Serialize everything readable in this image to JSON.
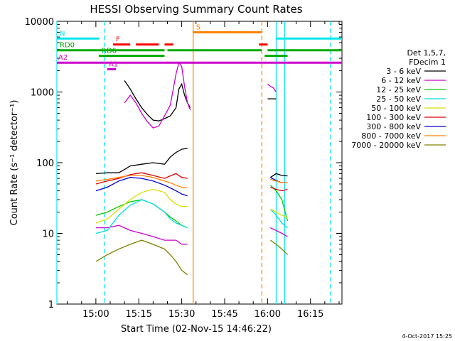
{
  "chart_data": {
    "type": "line",
    "title": "HESSI Observing Summary Count Rates",
    "xlabel": "Start Time (02-Nov-15 14:46:22)",
    "ylabel": "Count Rate (s⁻¹ detector⁻¹)",
    "yscale": "log",
    "ylim": [
      1,
      10000
    ],
    "xlim": [
      "14:46:22",
      "16:26:00"
    ],
    "x_tick_labels": [
      "15:00",
      "15:15",
      "15:30",
      "15:45",
      "16:00",
      "16:15"
    ],
    "y_tick_labels": [
      "1",
      "10",
      "100",
      "1000",
      "10000"
    ],
    "legend_header": [
      "Det 1,5,7,",
      "FDecim 1"
    ],
    "legend_position": "right",
    "series": [
      {
        "name": "3 - 6 keV",
        "color": "#000000",
        "segments": [
          {
            "x": [
              "15:00",
              "15:04",
              "15:08",
              "15:10",
              "15:12",
              "15:16",
              "15:20",
              "15:24",
              "15:26",
              "15:28",
              "15:30",
              "15:32"
            ],
            "y": [
              70,
              72,
              72,
              80,
              90,
              95,
              100,
              95,
              120,
              140,
              155,
              160
            ]
          },
          {
            "x": [
              "16:01",
              "16:03",
              "16:05",
              "16:07"
            ],
            "y": [
              62,
              70,
              66,
              65
            ]
          }
        ]
      },
      {
        "name": "6 - 12 keV",
        "color": "#cc00cc",
        "segments": [
          {
            "x": [
              "15:00",
              "15:04",
              "15:08",
              "15:10",
              "15:12",
              "15:16",
              "15:20",
              "15:24",
              "15:26",
              "15:28",
              "15:30",
              "15:32"
            ],
            "y": [
              12,
              12,
              13,
              12,
              11,
              10,
              9,
              8,
              8,
              8,
              7,
              7
            ]
          },
          {
            "x": [
              "16:01",
              "16:03",
              "16:05",
              "16:07"
            ],
            "y": [
              12,
              11,
              10,
              9
            ]
          }
        ]
      },
      {
        "name": "12 - 25 keV",
        "color": "#00cc00",
        "segments": [
          {
            "x": [
              "15:00",
              "15:04",
              "15:08",
              "15:12",
              "15:16",
              "15:20",
              "15:24",
              "15:26",
              "15:28",
              "15:30",
              "15:32"
            ],
            "y": [
              18,
              20,
              24,
              28,
              30,
              26,
              20,
              17,
              15,
              13,
              12
            ]
          },
          {
            "x": [
              "16:01",
              "16:03",
              "16:05",
              "16:07"
            ],
            "y": [
              48,
              40,
              30,
              15
            ]
          }
        ]
      },
      {
        "name": "25 - 50 keV",
        "color": "#00dddd",
        "segments": [
          {
            "x": [
              "15:00",
              "15:04",
              "15:08",
              "15:12",
              "15:16",
              "15:20",
              "15:24",
              "15:26",
              "15:28",
              "15:30",
              "15:32"
            ],
            "y": [
              10,
              11,
              18,
              25,
              30,
              26,
              20,
              16,
              14,
              13,
              12
            ]
          },
          {
            "x": [
              "16:01",
              "16:03",
              "16:05",
              "16:07"
            ],
            "y": [
              22,
              18,
              14,
              12
            ]
          }
        ]
      },
      {
        "name": "50 - 100 keV",
        "color": "#dddd00",
        "segments": [
          {
            "x": [
              "15:00",
              "15:04",
              "15:08",
              "15:12",
              "15:16",
              "15:20",
              "15:24",
              "15:26",
              "15:28",
              "15:30",
              "15:32"
            ],
            "y": [
              14,
              16,
              22,
              30,
              38,
              42,
              38,
              30,
              26,
              24,
              24
            ]
          },
          {
            "x": [
              "16:01",
              "16:03",
              "16:05",
              "16:07"
            ],
            "y": [
              22,
              20,
              18,
              17
            ]
          }
        ]
      },
      {
        "name": "100 - 300 keV",
        "color": "#dd0000",
        "segments": [
          {
            "x": [
              "15:00",
              "15:04",
              "15:08",
              "15:12",
              "15:16",
              "15:20",
              "15:24",
              "15:26",
              "15:28",
              "15:30",
              "15:32"
            ],
            "y": [
              50,
              55,
              60,
              68,
              72,
              66,
              60,
              65,
              70,
              62,
              60
            ]
          },
          {
            "x": [
              "16:01",
              "16:03",
              "16:05",
              "16:07"
            ],
            "y": [
              45,
              42,
              40,
              42
            ]
          }
        ]
      },
      {
        "name": "300 - 800 keV",
        "color": "#0000cc",
        "segments": [
          {
            "x": [
              "15:00",
              "15:04",
              "15:08",
              "15:12",
              "15:16",
              "15:20",
              "15:24",
              "15:26",
              "15:28",
              "15:30",
              "15:32"
            ],
            "y": [
              40,
              45,
              55,
              62,
              60,
              55,
              48,
              44,
              40,
              36,
              34
            ]
          },
          {
            "x": [
              "16:01",
              "16:03",
              "16:05",
              "16:07"
            ],
            "y": [
              62,
              56,
              52,
              52
            ]
          }
        ]
      },
      {
        "name": "800 - 7000 keV",
        "color": "#ff7f00",
        "segments": [
          {
            "x": [
              "15:00",
              "15:04",
              "15:08",
              "15:12",
              "15:16",
              "15:20",
              "15:24",
              "15:26",
              "15:28",
              "15:30",
              "15:32"
            ],
            "y": [
              55,
              58,
              62,
              66,
              66,
              62,
              55,
              52,
              48,
              45,
              44
            ]
          },
          {
            "x": [
              "16:01",
              "16:03",
              "16:05",
              "16:07"
            ],
            "y": [
              58,
              55,
              52,
              52
            ]
          }
        ]
      },
      {
        "name": "7000 - 20000 keV",
        "color": "#808000",
        "segments": [
          {
            "x": [
              "15:00",
              "15:04",
              "15:08",
              "15:12",
              "15:16",
              "15:20",
              "15:24",
              "15:26",
              "15:28",
              "15:30",
              "15:32"
            ],
            "y": [
              4,
              5,
              6,
              7,
              8,
              7,
              6,
              5,
              4,
              3,
              2.6
            ]
          },
          {
            "x": [
              "16:01",
              "16:03",
              "16:05",
              "16:07"
            ],
            "y": [
              8,
              7,
              6,
              5
            ]
          }
        ]
      }
    ],
    "flare_curves": [
      {
        "series": "3 - 6 keV",
        "color": "#000000",
        "x": [
          "15:10",
          "15:12",
          "15:14",
          "15:16",
          "15:18",
          "15:20",
          "15:22",
          "15:24",
          "15:26",
          "15:28",
          "15:29",
          "15:30",
          "15:31",
          "15:32",
          "15:33"
        ],
        "y": [
          1450,
          1100,
          800,
          600,
          480,
          400,
          390,
          420,
          460,
          600,
          1100,
          1300,
          900,
          700,
          600
        ]
      },
      {
        "series": "6 - 12 keV",
        "color": "#cc00cc",
        "x": [
          "15:10",
          "15:12",
          "15:14",
          "15:16",
          "15:18",
          "15:20",
          "15:22",
          "15:24",
          "15:26",
          "15:28",
          "15:29",
          "15:30",
          "15:31",
          "15:32",
          "15:33"
        ],
        "y": [
          700,
          900,
          700,
          500,
          380,
          310,
          330,
          460,
          650,
          1800,
          2600,
          2300,
          1200,
          700,
          560
        ]
      }
    ],
    "flare_curves_later": [
      {
        "series": "3 - 6 keV",
        "color": "#000000",
        "x": [
          "16:00",
          "16:01",
          "16:02",
          "16:03"
        ],
        "y": [
          800,
          800,
          800,
          800
        ]
      },
      {
        "series": "6 - 12 keV",
        "color": "#cc00cc",
        "x": [
          "16:00",
          "16:01",
          "16:02",
          "16:03"
        ],
        "y": [
          1300,
          1200,
          1150,
          1000
        ]
      }
    ],
    "flag_bars": [
      {
        "label": "N",
        "color": "#00e5ee",
        "y": 5700,
        "spans": [
          [
            "14:46:22",
            "15:01"
          ],
          [
            "16:03",
            "16:26"
          ]
        ]
      },
      {
        "label": "F",
        "color": "#ff0000",
        "y": 4700,
        "spans": [
          [
            "15:06",
            "15:12"
          ],
          [
            "15:14",
            "15:22"
          ],
          [
            "15:24",
            "15:27"
          ],
          [
            "15:57",
            "16:00"
          ]
        ]
      },
      {
        "label": "RD0",
        "color": "#00aa00",
        "y": 3900,
        "spans": [
          [
            "14:46:22",
            "15:24"
          ],
          [
            "15:25",
            "15:58"
          ],
          [
            "16:00",
            "16:26"
          ]
        ]
      },
      {
        "label": "RD6",
        "color": "#00aa00",
        "y": 3250,
        "spans": [
          [
            "15:01",
            "15:24"
          ],
          [
            "15:59",
            "16:07"
          ]
        ]
      },
      {
        "label": "A2",
        "color": "#cc00cc",
        "y": 2600,
        "spans": [
          [
            "14:46:22",
            "16:26"
          ]
        ]
      },
      {
        "label": "A1",
        "color": "#cc00cc",
        "y": 2100,
        "spans": [
          [
            "15:04",
            "15:07"
          ]
        ]
      },
      {
        "label": "S",
        "color": "#ff7f00",
        "y": 7000,
        "spans": [
          [
            "15:34",
            "15:58"
          ]
        ]
      }
    ],
    "vertical_markers": [
      {
        "x": "14:46:22",
        "color": "#00e5ee",
        "style": "solid"
      },
      {
        "x": "15:03",
        "color": "#00e5ee",
        "style": "dashed"
      },
      {
        "x": "15:34",
        "color": "#ff7f00",
        "style": "solid"
      },
      {
        "x": "15:58",
        "color": "#ff7f00",
        "style": "dashed"
      },
      {
        "x": "16:03",
        "color": "#00e5ee",
        "style": "solid"
      },
      {
        "x": "16:06",
        "color": "#00e5ee",
        "style": "solid"
      },
      {
        "x": "16:22",
        "color": "#00e5ee",
        "style": "dashed"
      }
    ]
  },
  "footer": {
    "timestamp": "4-Oct-2017 15:25"
  }
}
